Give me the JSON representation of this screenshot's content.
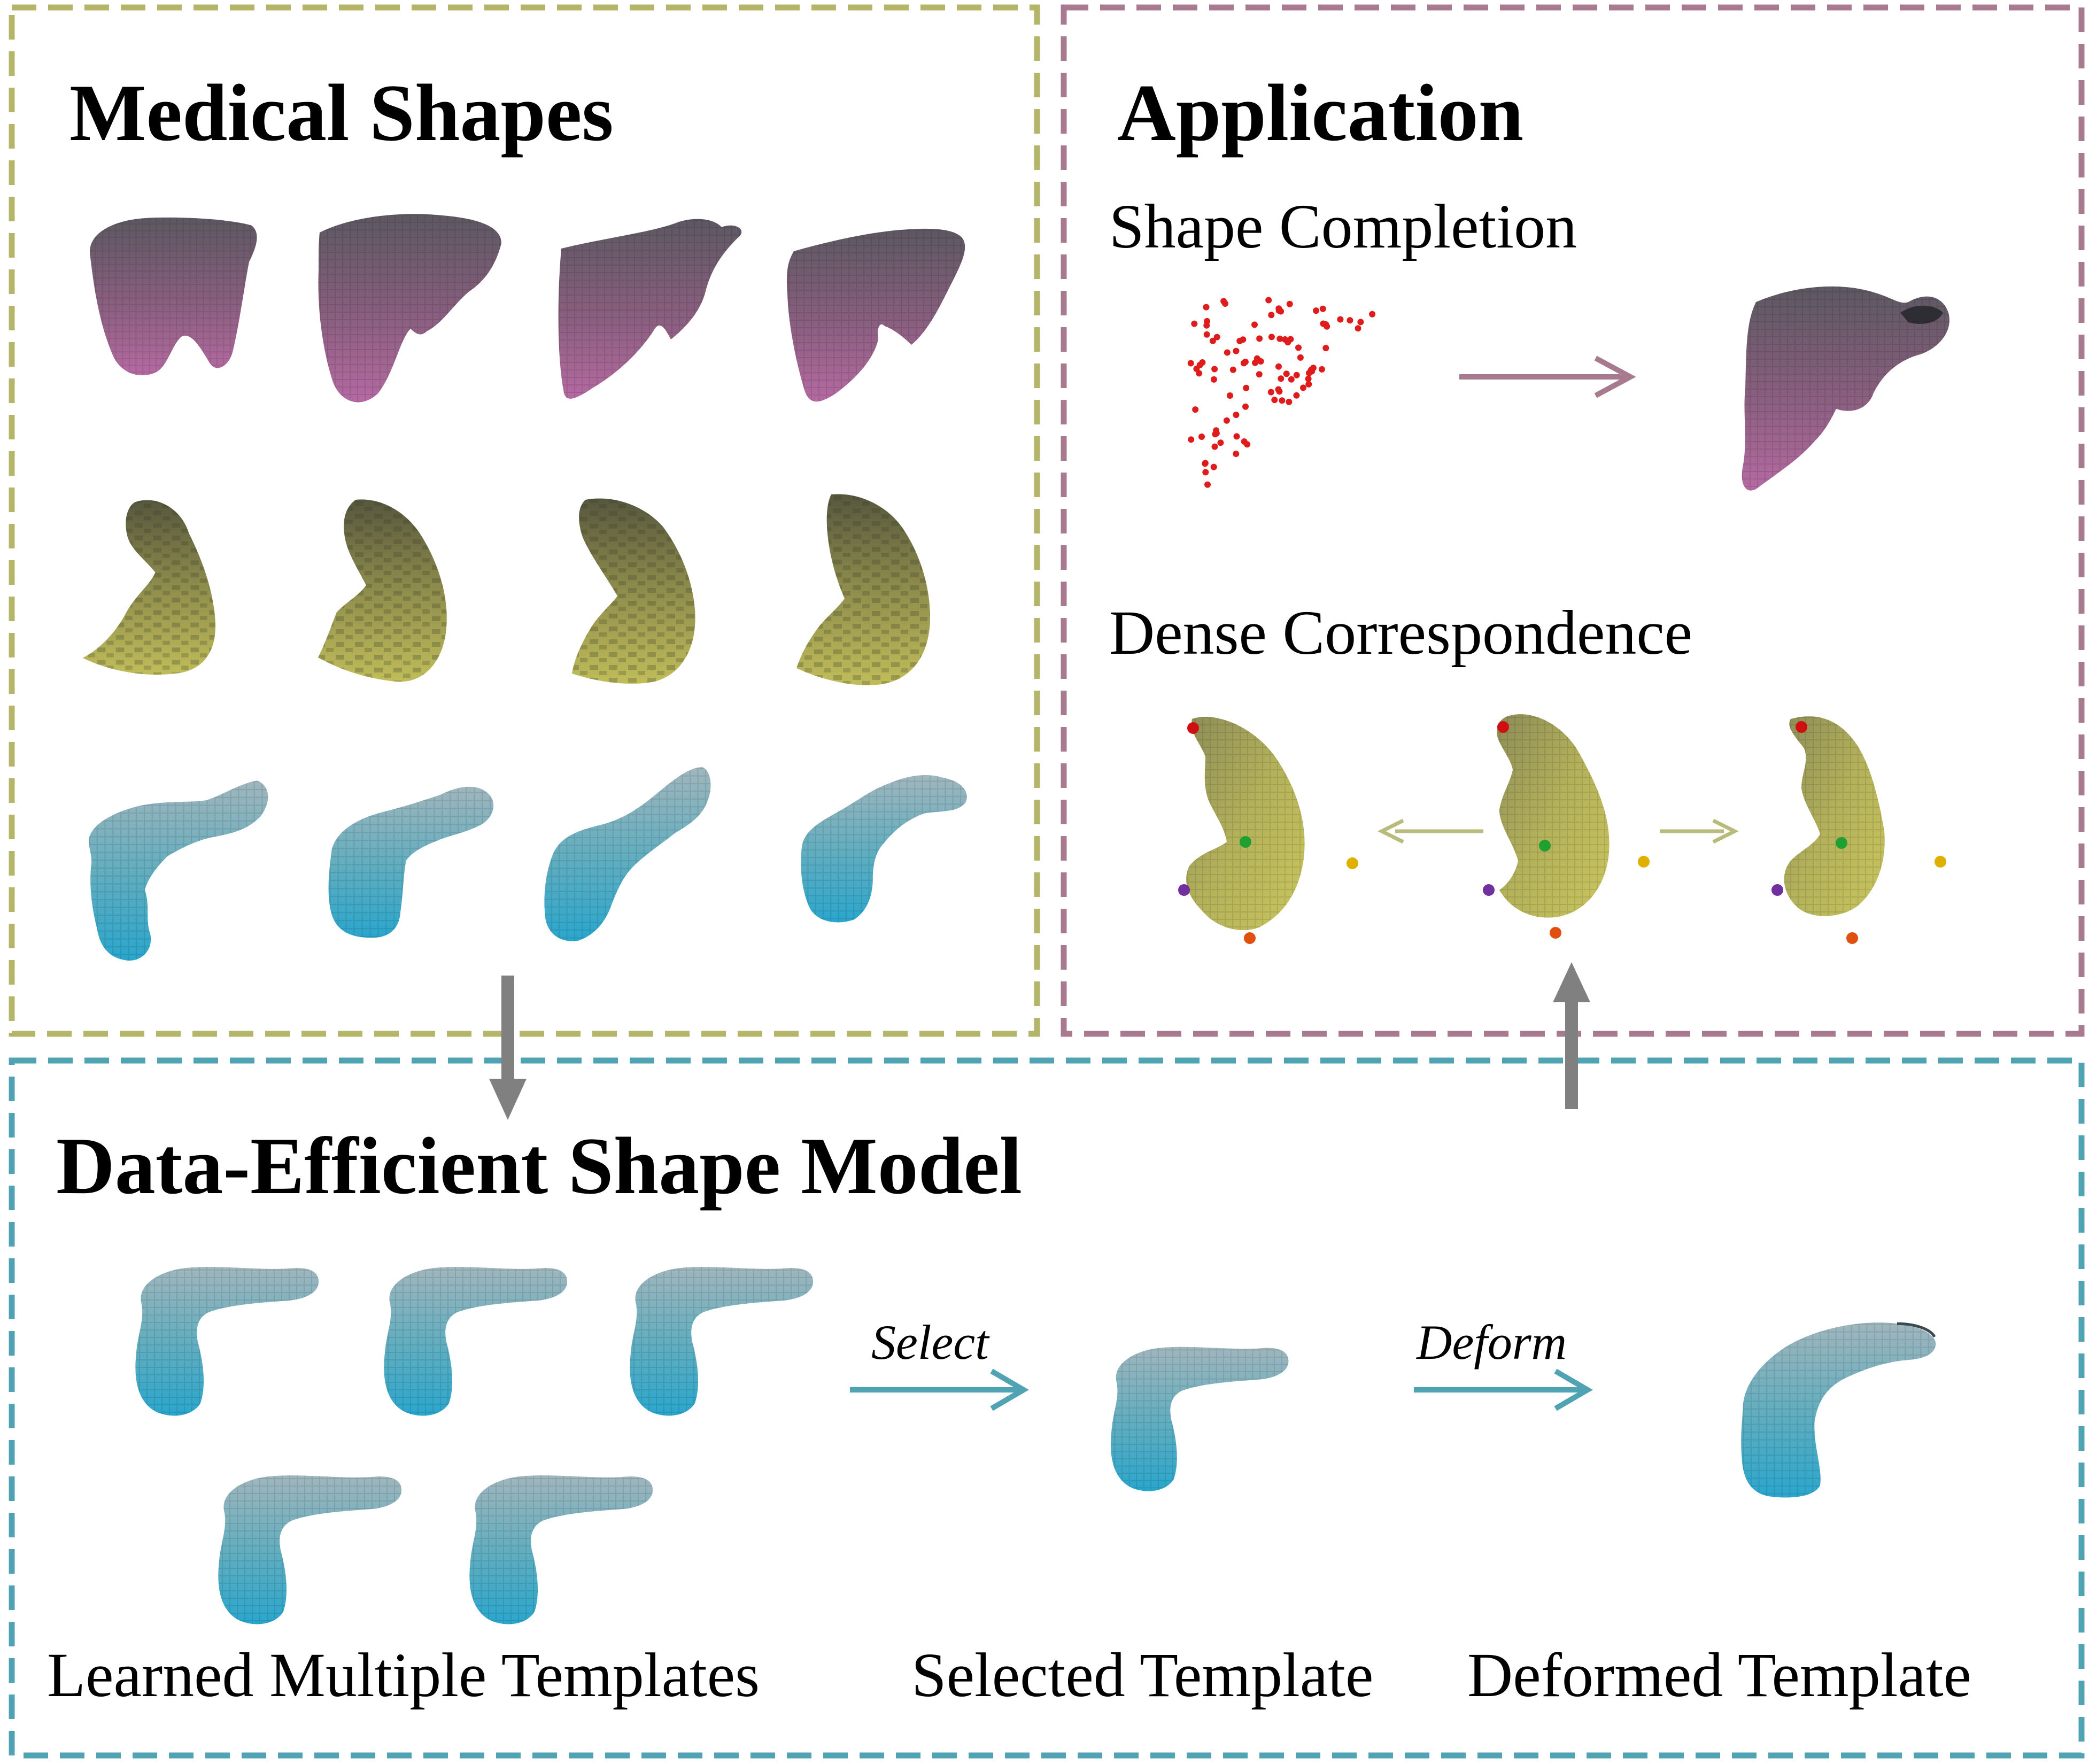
{
  "panels": {
    "medical_shapes": {
      "title": "Medical Shapes",
      "border_color": "#b5b56a"
    },
    "application": {
      "title": "Application",
      "border_color": "#a87a90",
      "shape_completion_label": "Shape Completion",
      "dense_correspondence_label": "Dense Correspondence"
    },
    "shape_model": {
      "title": "Data-Efficient Shape Model",
      "border_color": "#4fa3b3",
      "select_label": "Select",
      "deform_label": "Deform",
      "learned_templates_label": "Learned Multiple Templates",
      "selected_template_label": "Selected Template",
      "deformed_template_label": "Deformed Template"
    }
  },
  "organ_rows": [
    "liver",
    "spleen",
    "pancreas"
  ],
  "colors": {
    "liver_top": "#5c5862",
    "liver_bottom": "#b56aa2",
    "spleen_top": "#56573e",
    "spleen_bottom": "#c0bd5a",
    "pancreas_top": "#a0b6bd",
    "pancreas_bottom": "#2aa6cd",
    "point_cloud": "#e01b1b",
    "flow_arrow": "#808080",
    "completion_arrow": "#a87a90",
    "correspondence_arrow": "#b9bb7a",
    "template_arrow": "#4fa3b3",
    "landmarks": [
      "#d01010",
      "#20a030",
      "#e0b000",
      "#7030a0",
      "#e05010"
    ]
  }
}
